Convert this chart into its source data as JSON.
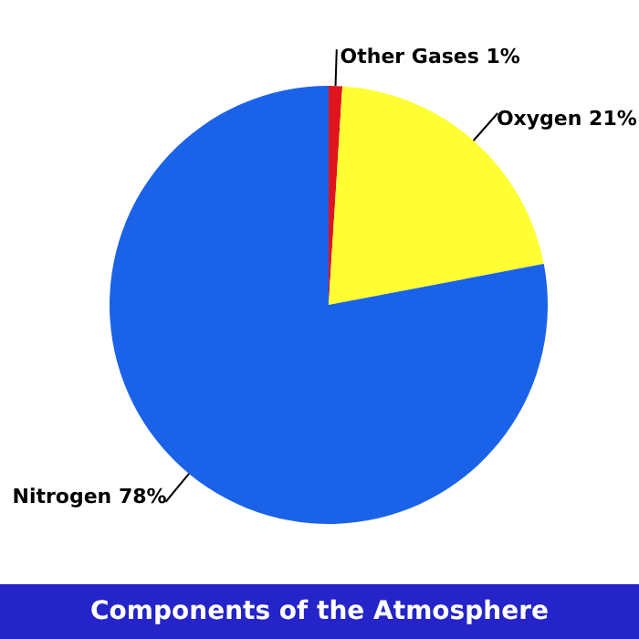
{
  "chart_data": {
    "type": "pie",
    "title": "Components of the Atmosphere",
    "categories": [
      "Other Gases",
      "Oxygen",
      "Nitrogen"
    ],
    "values": [
      1,
      21,
      78
    ],
    "value_labels": [
      "1%",
      "21%",
      "78%"
    ],
    "colors": [
      "#e0141e",
      "#ffff33",
      "#1a63e8"
    ]
  }
}
